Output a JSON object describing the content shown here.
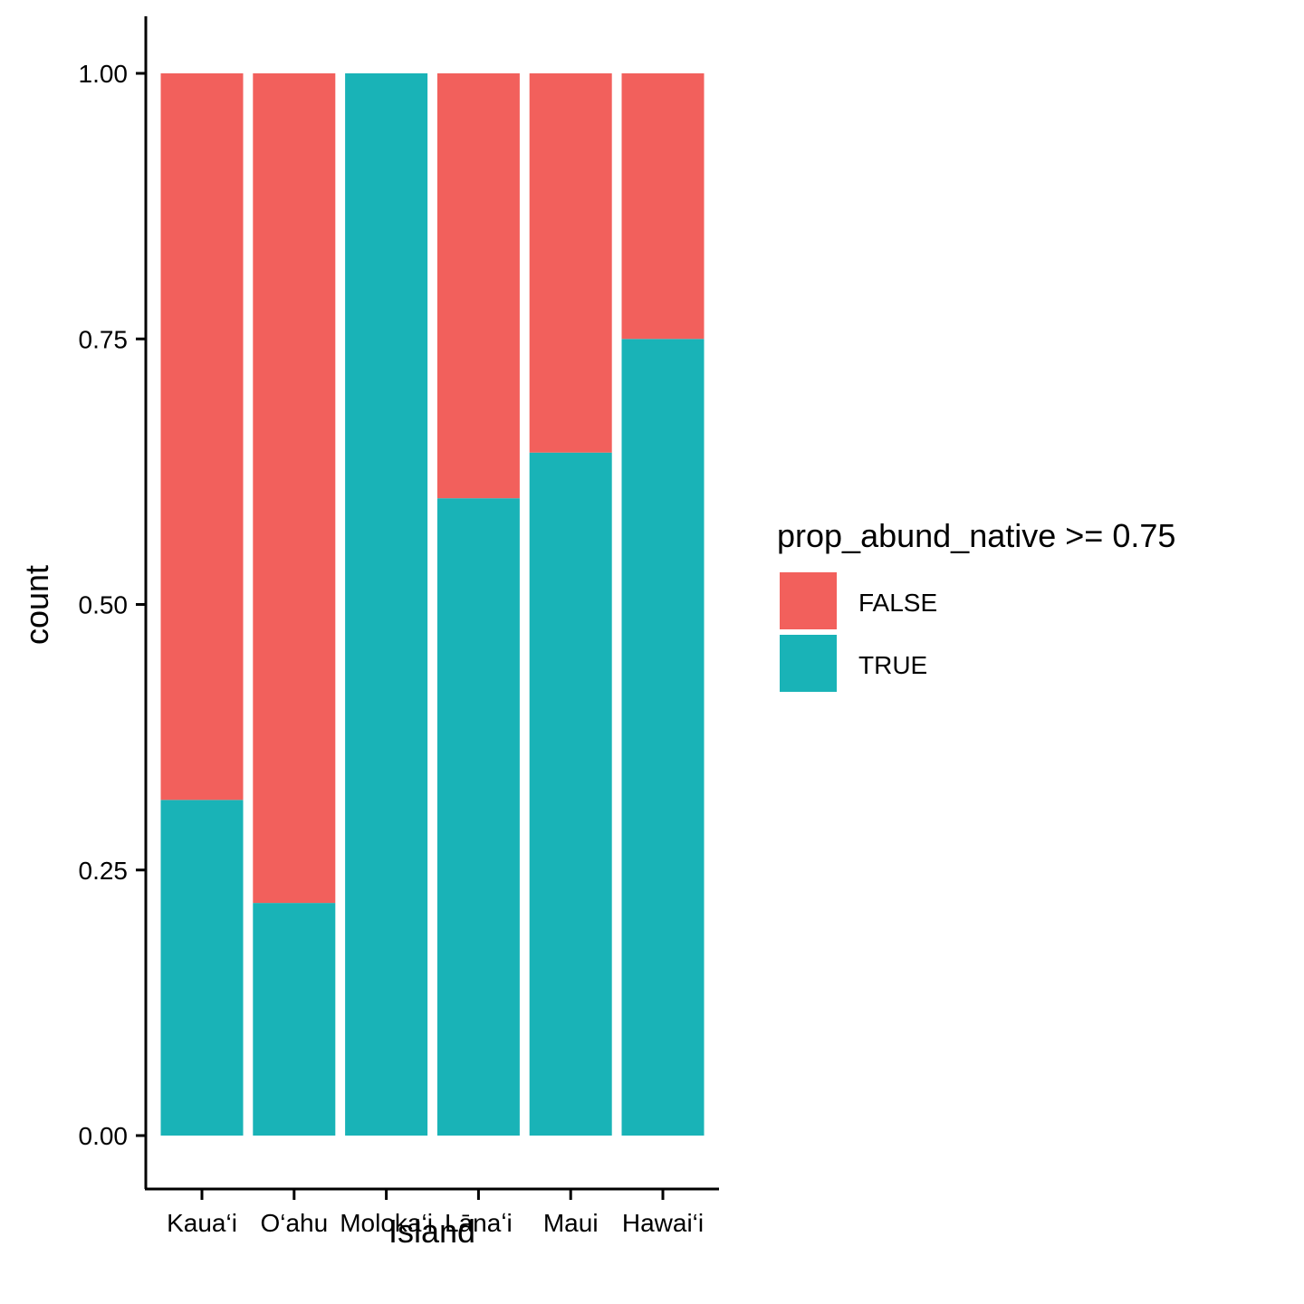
{
  "chart_data": {
    "type": "bar",
    "stacked": true,
    "categories": [
      "Kaua‘i",
      "O‘ahu",
      "Moloka‘i",
      "Lānaʻi",
      "Maui",
      "Hawai‘i"
    ],
    "series": [
      {
        "name": "FALSE",
        "color": "#F2605C",
        "values": [
          0.684,
          0.781,
          0.0,
          0.4,
          0.357,
          0.25
        ]
      },
      {
        "name": "TRUE",
        "color": "#19B3B7",
        "values": [
          0.316,
          0.219,
          1.0,
          0.6,
          0.643,
          0.75
        ]
      }
    ],
    "xlabel": "Island",
    "ylabel": "count",
    "ylim": [
      0,
      1
    ],
    "yticks": [
      "0.00",
      "0.25",
      "0.50",
      "0.75",
      "1.00"
    ],
    "legend": {
      "title": "prop_abund_native >= 0.75",
      "position": "right"
    },
    "grid": false
  }
}
